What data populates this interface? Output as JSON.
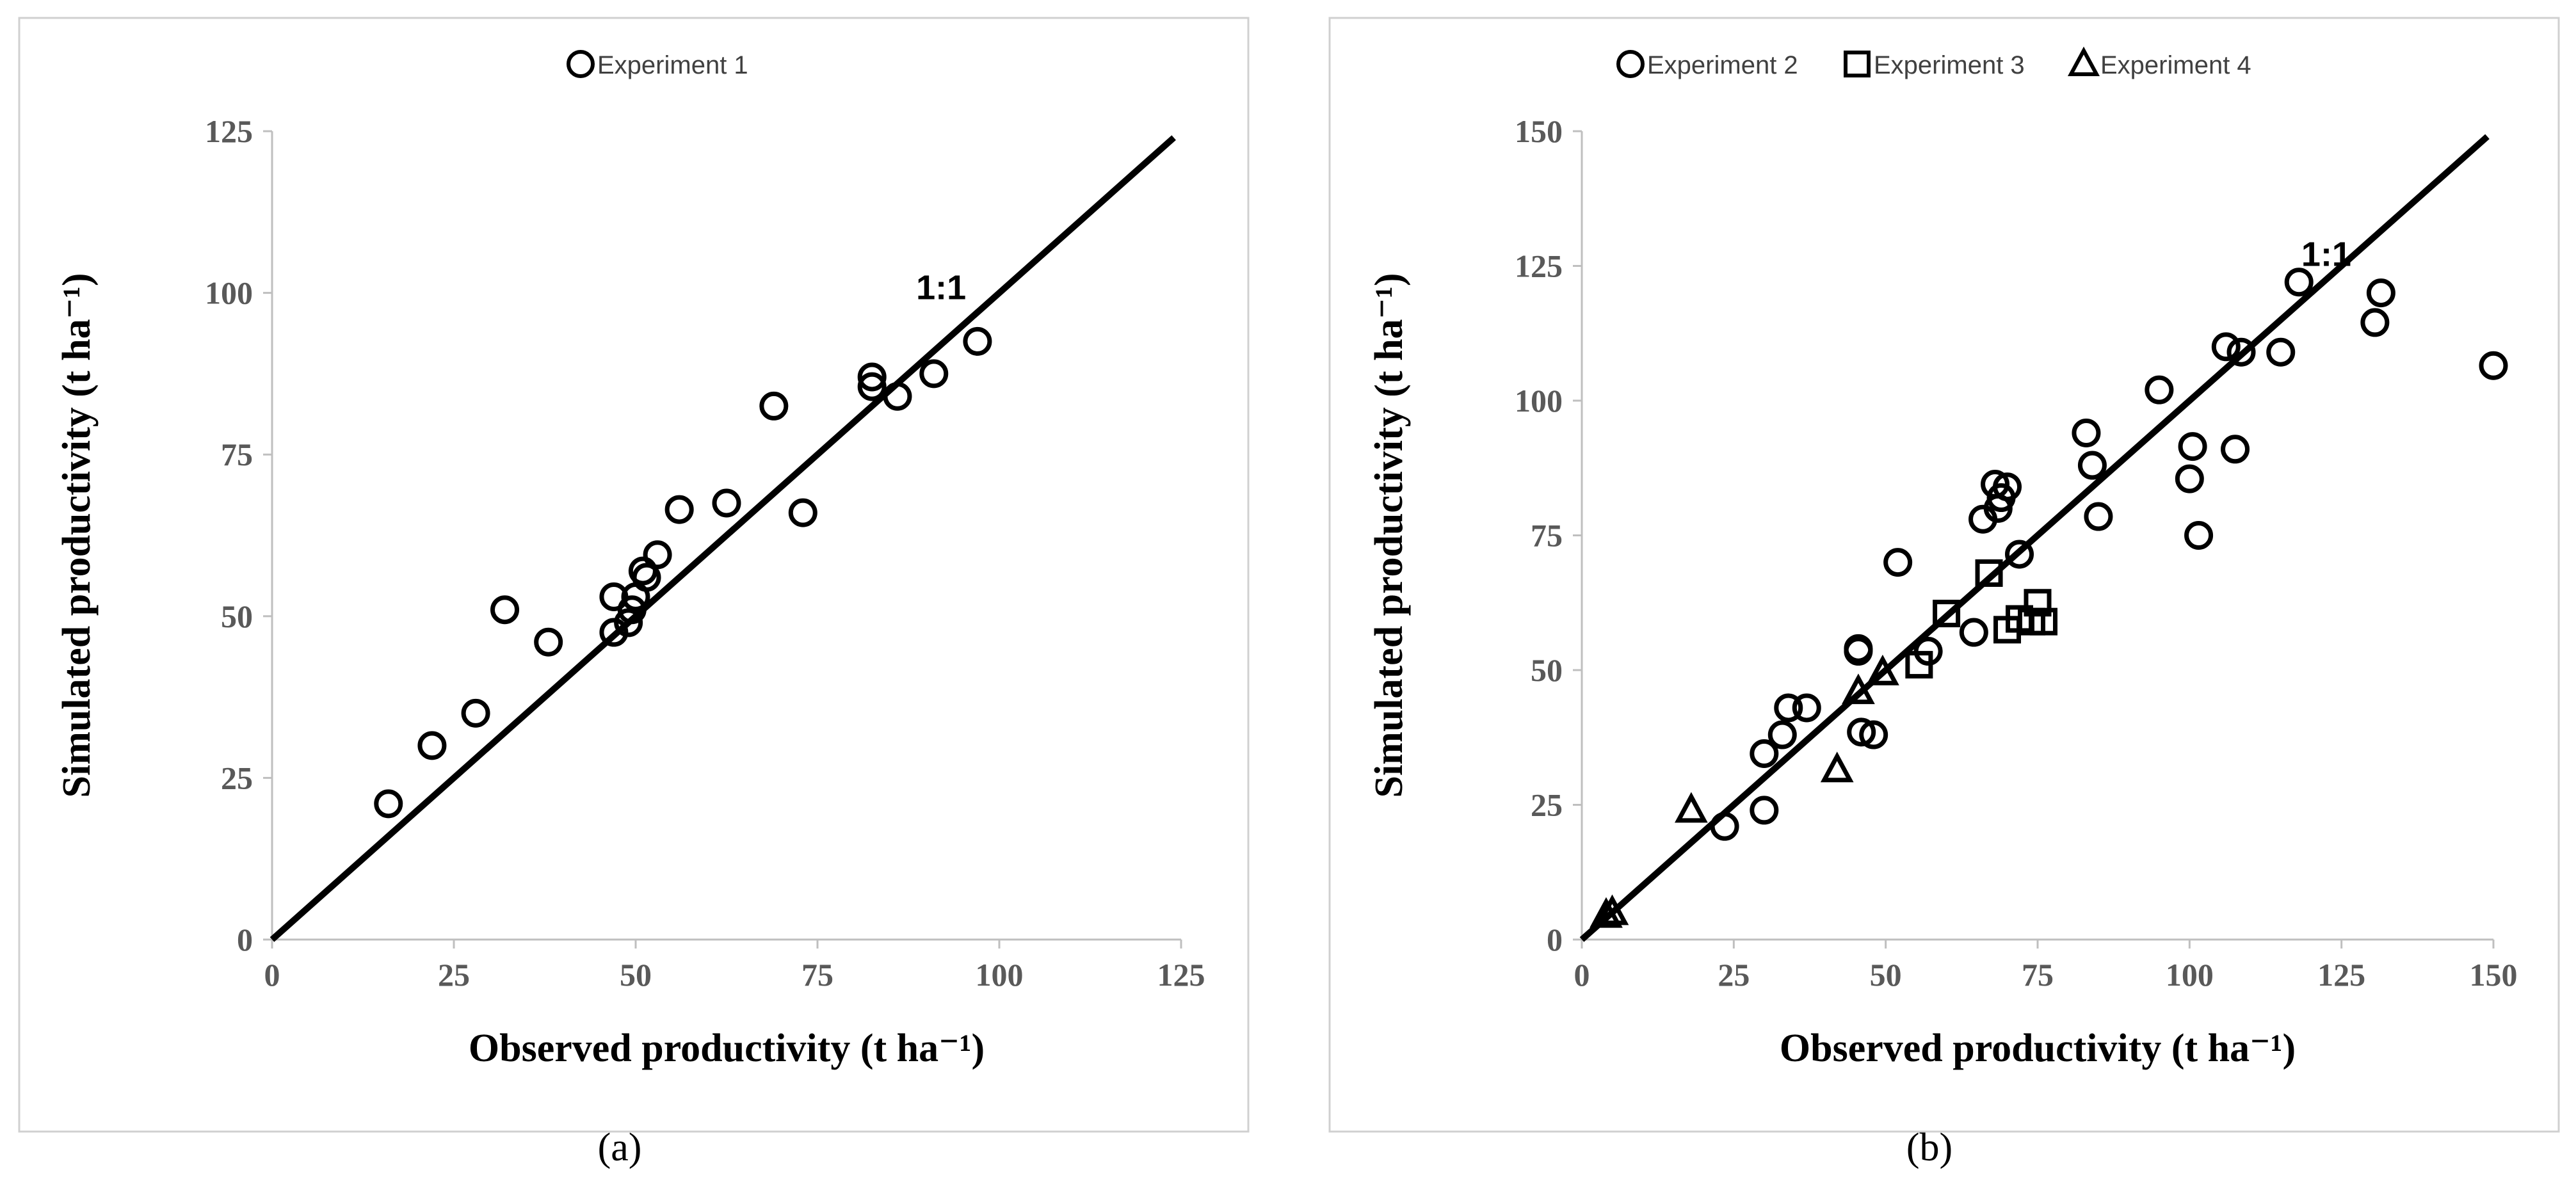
{
  "chart_data": [
    {
      "type": "scatter",
      "panel_label": "(a)",
      "xlabel": "Observed productivity (t ha⁻¹)",
      "ylabel": "Simulated productivity (t ha⁻¹)",
      "xlim": [
        0,
        125
      ],
      "ylim": [
        0,
        125
      ],
      "xticks": [
        0,
        25,
        50,
        75,
        100,
        125
      ],
      "yticks": [
        0,
        25,
        50,
        75,
        100,
        125
      ],
      "grid": false,
      "legend_position": "top-center",
      "reference_line": {
        "label": "1:1",
        "from": [
          0,
          0
        ],
        "to": [
          124,
          124
        ]
      },
      "series": [
        {
          "name": "Experiment 1",
          "marker": "circle",
          "points": [
            [
              16,
              21
            ],
            [
              22,
              30
            ],
            [
              28,
              35
            ],
            [
              32,
              51
            ],
            [
              38,
              46
            ],
            [
              47,
              47.5
            ],
            [
              47,
              53
            ],
            [
              49,
              49
            ],
            [
              49.5,
              51
            ],
            [
              50,
              53
            ],
            [
              51,
              57
            ],
            [
              51.5,
              56
            ],
            [
              53,
              59.5
            ],
            [
              56,
              66.5
            ],
            [
              62.5,
              67.5
            ],
            [
              69,
              82.5
            ],
            [
              73,
              66
            ],
            [
              82.5,
              85.5
            ],
            [
              82.5,
              87
            ],
            [
              86,
              84
            ],
            [
              91,
              87.5
            ],
            [
              97,
              92.5
            ]
          ]
        }
      ]
    },
    {
      "type": "scatter",
      "panel_label": "(b)",
      "xlabel": "Observed productivity (t ha⁻¹)",
      "ylabel": "Simulated productivity (t ha⁻¹)",
      "xlim": [
        0,
        150
      ],
      "ylim": [
        0,
        150
      ],
      "xticks": [
        0,
        25,
        50,
        75,
        100,
        125,
        150
      ],
      "yticks": [
        0,
        25,
        50,
        75,
        100,
        125,
        150
      ],
      "grid": false,
      "legend_position": "top-center",
      "reference_line": {
        "label": "1:1",
        "from": [
          0,
          0
        ],
        "to": [
          149,
          149
        ]
      },
      "series": [
        {
          "name": "Experiment 2",
          "marker": "circle",
          "points": [
            [
              23.5,
              21
            ],
            [
              30,
              24
            ],
            [
              30,
              34.5
            ],
            [
              33,
              38
            ],
            [
              34,
              43
            ],
            [
              37,
              43
            ],
            [
              45.5,
              54
            ],
            [
              45.5,
              53.5
            ],
            [
              46,
              38.5
            ],
            [
              48,
              38
            ],
            [
              52,
              70
            ],
            [
              57,
              53.5
            ],
            [
              64.5,
              57
            ],
            [
              66,
              78
            ],
            [
              68,
              84.5
            ],
            [
              68.5,
              80
            ],
            [
              69,
              82
            ],
            [
              70,
              84
            ],
            [
              72,
              71.5
            ],
            [
              83,
              94
            ],
            [
              84,
              88
            ],
            [
              85,
              78.5
            ],
            [
              95,
              102
            ],
            [
              100,
              85.5
            ],
            [
              100.5,
              91.5
            ],
            [
              101.5,
              75
            ],
            [
              106,
              110
            ],
            [
              107.5,
              91
            ],
            [
              108.5,
              109
            ],
            [
              115,
              109
            ],
            [
              118,
              122
            ],
            [
              130.5,
              114.5
            ],
            [
              131.5,
              120
            ],
            [
              150,
              106.5
            ]
          ]
        },
        {
          "name": "Experiment 3",
          "marker": "square",
          "points": [
            [
              55.5,
              51
            ],
            [
              60,
              60.5
            ],
            [
              67,
              68
            ],
            [
              70,
              57.5
            ],
            [
              72,
              59.5
            ],
            [
              74,
              59
            ],
            [
              75,
              62.5
            ],
            [
              76,
              59
            ]
          ]
        },
        {
          "name": "Experiment 4",
          "marker": "triangle",
          "points": [
            [
              4,
              4.5
            ],
            [
              5,
              5
            ],
            [
              18,
              24
            ],
            [
              42,
              31.5
            ],
            [
              45.5,
              46
            ],
            [
              49.5,
              49.5
            ]
          ]
        }
      ]
    }
  ]
}
